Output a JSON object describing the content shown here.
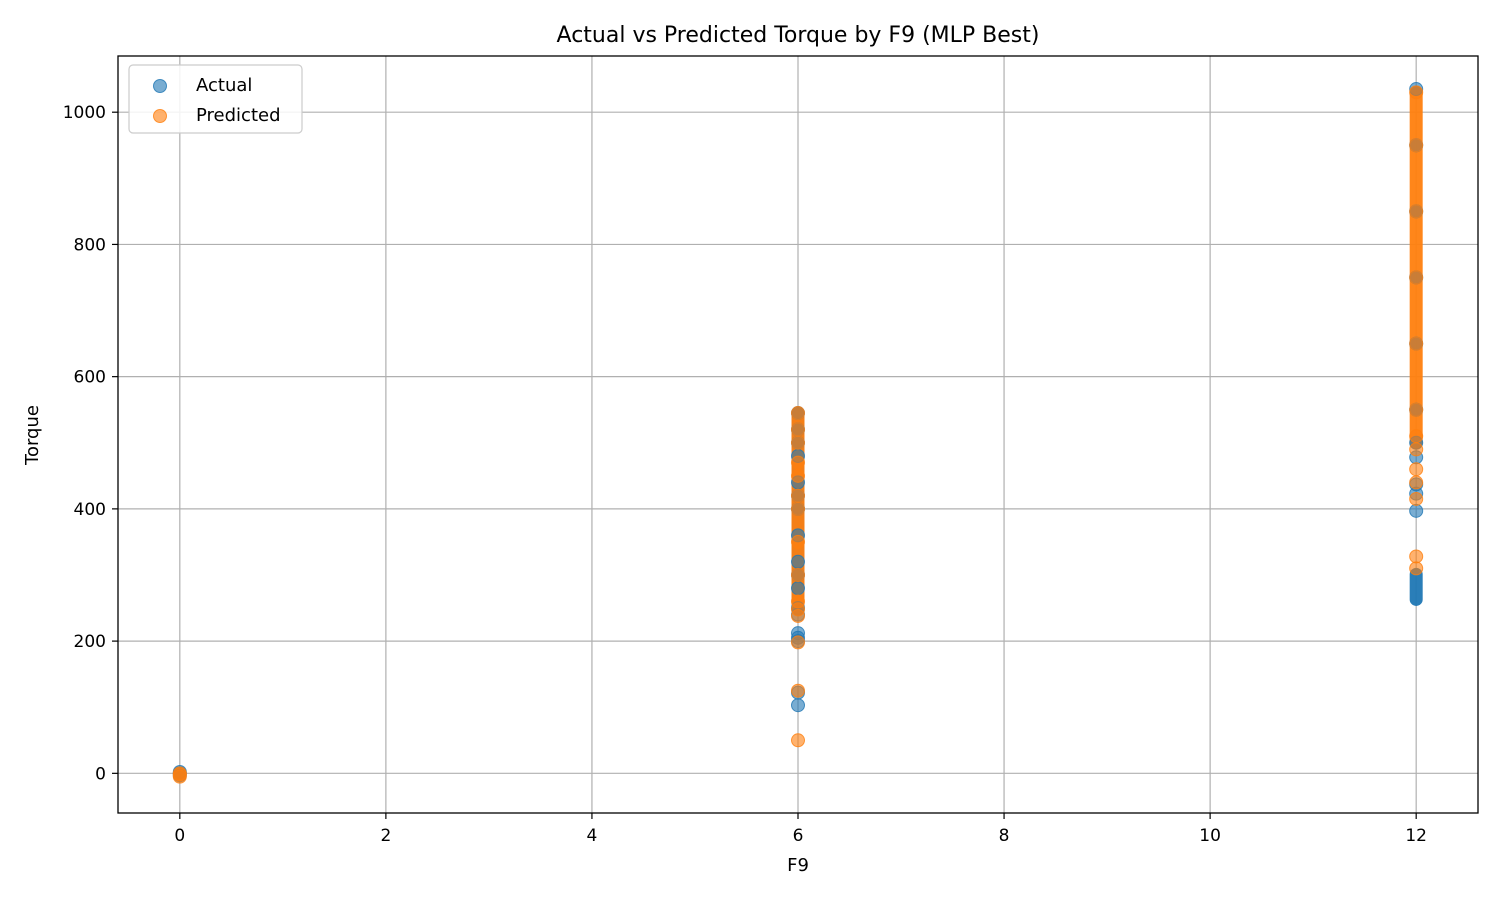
{
  "chart_data": {
    "type": "scatter",
    "title": "Actual vs Predicted Torque by F9 (MLP Best)",
    "xlabel": "F9",
    "ylabel": "Torque",
    "xlim": [
      -0.6,
      12.6
    ],
    "ylim": [
      -60,
      1085
    ],
    "xticks": [
      0,
      2,
      4,
      6,
      8,
      10,
      12
    ],
    "yticks": [
      0,
      200,
      400,
      600,
      800,
      1000
    ],
    "xtick_labels": [
      "0",
      "2",
      "4",
      "6",
      "8",
      "10",
      "12"
    ],
    "ytick_labels": [
      "0",
      "200",
      "400",
      "600",
      "800",
      "1000"
    ],
    "grid": true,
    "legend_position": "top-left",
    "series": [
      {
        "name": "Actual",
        "color": "#1f77b4",
        "x": [
          0,
          0,
          0,
          6,
          6,
          6,
          6,
          6,
          6,
          6,
          6,
          6,
          6,
          6,
          6,
          6,
          6,
          6,
          6,
          6,
          6,
          12,
          12,
          12,
          12,
          12,
          12,
          12,
          12,
          12,
          12,
          12
        ],
        "y": [
          0,
          -3,
          2,
          545,
          520,
          480,
          440,
          400,
          360,
          320,
          280,
          250,
          240,
          212,
          205,
          200,
          122,
          103,
          500,
          420,
          300,
          1035,
          950,
          850,
          750,
          650,
          550,
          500,
          478,
          437,
          423,
          397
        ]
      },
      {
        "name": "Predicted",
        "color": "#ff7f0e",
        "x": [
          0,
          0,
          0,
          6,
          6,
          6,
          6,
          6,
          6,
          6,
          6,
          6,
          6,
          6,
          6,
          6,
          6,
          6,
          12,
          12,
          12,
          12,
          12,
          12,
          12,
          12,
          12,
          12,
          12,
          12,
          12
        ],
        "y": [
          -5,
          0,
          -2,
          545,
          500,
          450,
          400,
          350,
          300,
          260,
          248,
          238,
          198,
          125,
          50,
          420,
          470,
          520,
          1030,
          950,
          850,
          750,
          650,
          550,
          510,
          490,
          460,
          440,
          415,
          328,
          310
        ]
      }
    ],
    "ranges": [
      {
        "series": "Actual",
        "x": 12,
        "y_min": 263,
        "y_max": 301
      },
      {
        "series": "Actual",
        "x": 6,
        "y_min": 248,
        "y_max": 545
      },
      {
        "series": "Predicted",
        "x": 6,
        "y_min": 250,
        "y_max": 545
      },
      {
        "series": "Predicted",
        "x": 12,
        "y_min": 500,
        "y_max": 1030
      }
    ]
  }
}
